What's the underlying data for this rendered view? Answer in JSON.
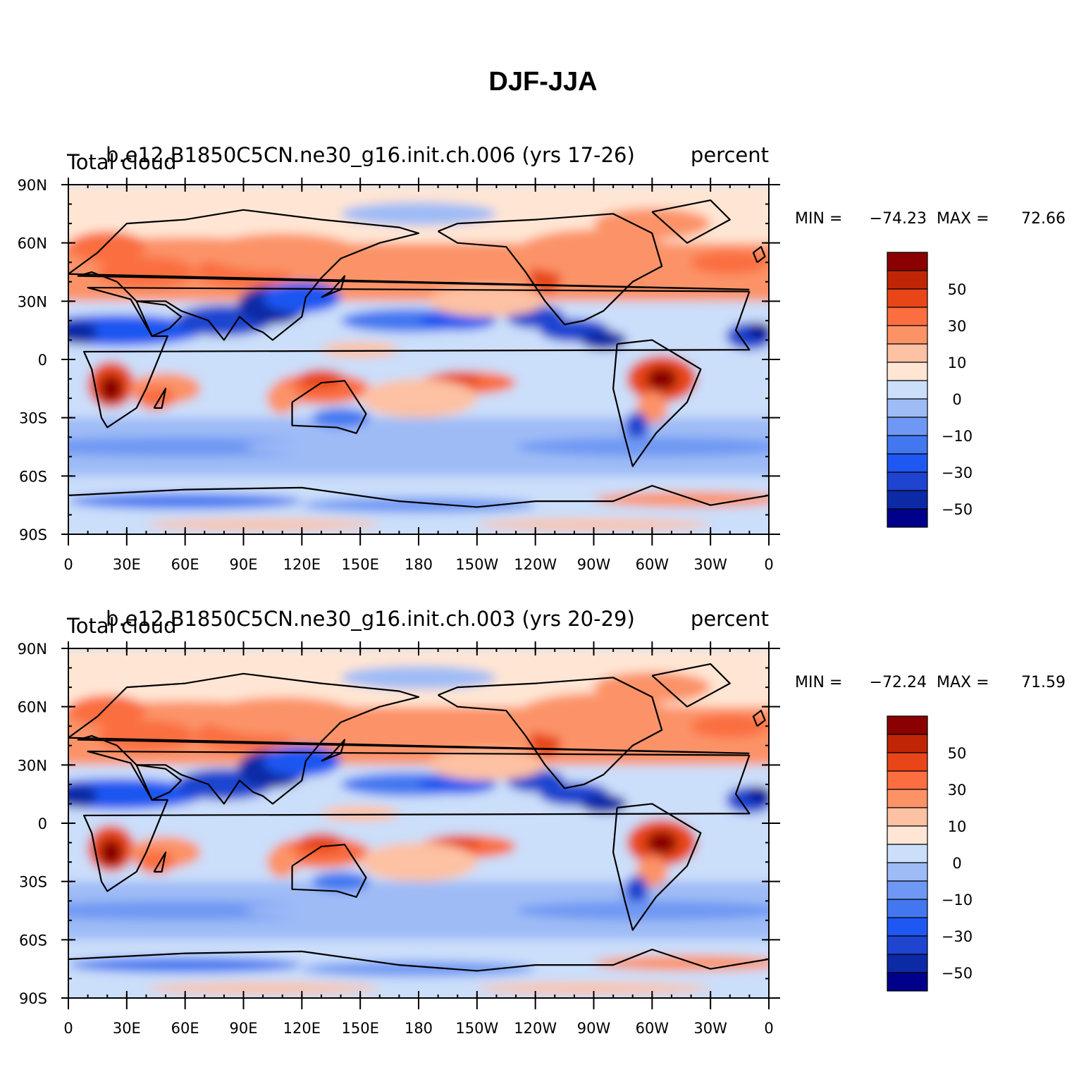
{
  "figure": {
    "title": "DJF-JJA"
  },
  "colorbar": {
    "colors": [
      "#00008b",
      "#0c2aa6",
      "#1f44d0",
      "#1e57f1",
      "#4277f0",
      "#6e98f3",
      "#9ebbf6",
      "#cbdefa",
      "#ffe6d4",
      "#fdc1a3",
      "#fc9367",
      "#fa6e40",
      "#e84618",
      "#c02505",
      "#8b0000"
    ],
    "tick_labels": [
      "50",
      "30",
      "10",
      "0",
      "−10",
      "−30",
      "−50"
    ]
  },
  "axes": {
    "lat_labels": [
      "90N",
      "60N",
      "30N",
      "0",
      "30S",
      "60S",
      "90S"
    ],
    "lon_labels": [
      "0",
      "30E",
      "60E",
      "90E",
      "120E",
      "150E",
      "180",
      "150W",
      "120W",
      "90W",
      "60W",
      "30W",
      "0"
    ]
  },
  "panels": [
    {
      "case_title": "b.e12.B1850C5CN.ne30_g16.init.ch.006 (yrs 17-26)",
      "left_label": "Total cloud",
      "right_label": "percent",
      "min_label": "MIN =",
      "min_value": "−74.23",
      "max_label": "MAX =",
      "max_value": "72.66"
    },
    {
      "case_title": "b.e12.B1850C5CN.ne30_g16.init.ch.003 (yrs 20-29)",
      "left_label": "Total cloud",
      "right_label": "percent",
      "min_label": "MIN =",
      "min_value": "−72.24",
      "max_label": "MAX =",
      "max_value": "71.59"
    }
  ]
}
